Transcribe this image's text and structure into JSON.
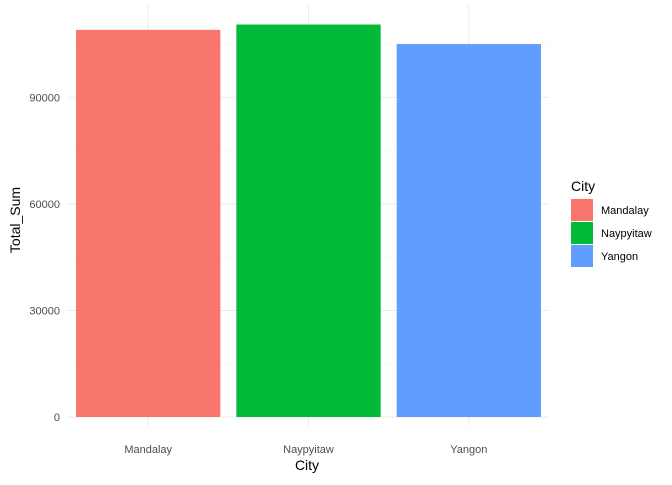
{
  "chart_data": {
    "type": "bar",
    "title": "",
    "xlabel": "City",
    "ylabel": "Total_Sum",
    "categories": [
      "Mandalay",
      "Naypyitaw",
      "Yangon"
    ],
    "values": [
      109000,
      110500,
      105000
    ],
    "colors": [
      "#F8766D",
      "#00BA38",
      "#619CFF"
    ],
    "ylim": [
      0,
      116000
    ],
    "y_ticks": [
      0,
      30000,
      60000,
      90000
    ],
    "y_tick_labels": [
      "0",
      "30000",
      "60000",
      "90000"
    ],
    "grid": true,
    "legend": {
      "title": "City",
      "placement": "right",
      "entries": [
        "Mandalay",
        "Naypyitaw",
        "Yangon"
      ]
    }
  }
}
